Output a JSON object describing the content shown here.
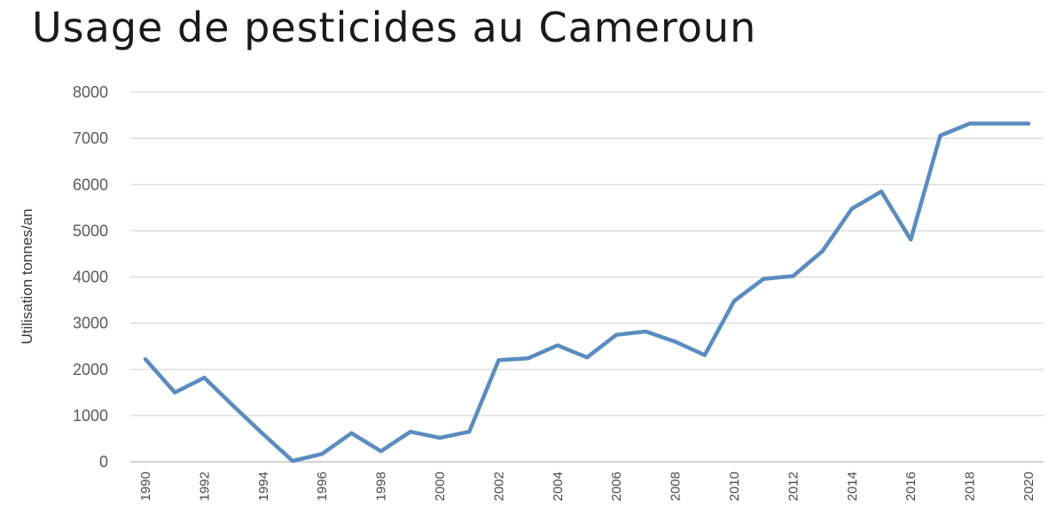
{
  "chart_data": {
    "type": "line",
    "title": "Usage de pesticides au Cameroun",
    "xlabel": "",
    "ylabel": "Utilisation tonnes/an",
    "ylim": [
      0,
      8000
    ],
    "yticks": [
      "0",
      "1000",
      "2000",
      "3000",
      "4000",
      "5000",
      "6000",
      "7000",
      "8000"
    ],
    "xticks": [
      "1990",
      "1992",
      "1994",
      "1996",
      "1998",
      "2000",
      "2002",
      "2004",
      "2006",
      "2008",
      "2010",
      "2012",
      "2014",
      "2016",
      "2018",
      "2020"
    ],
    "grid": true,
    "legend": "none",
    "x": [
      1990,
      1991,
      1992,
      1993,
      1994,
      1995,
      1996,
      1997,
      1998,
      1999,
      2000,
      2001,
      2002,
      2003,
      2004,
      2005,
      2006,
      2007,
      2008,
      2009,
      2010,
      2011,
      2012,
      2013,
      2014,
      2015,
      2016,
      2017,
      2018,
      2019,
      2020
    ],
    "series": [
      {
        "values": [
          2220,
          1500,
          1820,
          1200,
          600,
          20,
          170,
          620,
          230,
          650,
          520,
          650,
          2200,
          2240,
          2520,
          2260,
          2750,
          2820,
          2600,
          2310,
          3480,
          3960,
          4020,
          4560,
          5480,
          5850,
          4810,
          7060,
          7320,
          7320,
          7320
        ],
        "color": "#5b8cbf"
      }
    ]
  }
}
